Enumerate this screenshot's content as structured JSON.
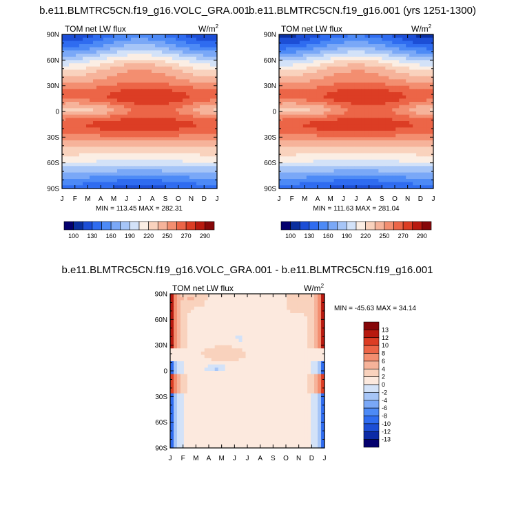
{
  "palette": [
    "#04006e",
    "#0a2f9e",
    "#1c4ed6",
    "#2f6cf0",
    "#4d8af6",
    "#7aa8f7",
    "#a6c5f7",
    "#d3e2f8",
    "#fbeee4",
    "#f9d2bd",
    "#f6b39a",
    "#f38e70",
    "#ec6547",
    "#dc3d24",
    "#b8190f",
    "#860709"
  ],
  "diff_palette": [
    "#04006e",
    "#0c2ba6",
    "#1c4ed6",
    "#2f6cf0",
    "#4d8af6",
    "#7aa8f7",
    "#a6c5f7",
    "#d3e2f8",
    "#fce9de",
    "#f9d2bd",
    "#f6b39a",
    "#f38e70",
    "#ec6547",
    "#dc3d24",
    "#b8190f",
    "#860709"
  ],
  "chart_data": [
    {
      "type": "heatmap",
      "title": "b.e11.BLMTRC5CN.f19_g16.VOLC_GRA.001",
      "left_label": "TOM net LW flux",
      "units_base": "W/m",
      "units_exp": "2",
      "x_ticks": [
        "J",
        "F",
        "M",
        "A",
        "M",
        "J",
        "J",
        "A",
        "S",
        "O",
        "N",
        "D",
        "J"
      ],
      "y_ticks": [
        "90N",
        "60N",
        "30N",
        "0",
        "30S",
        "60S",
        "90S"
      ],
      "min_max": "MIN = 113.45 MAX = 282.31",
      "colorbar_labels": [
        "100",
        "130",
        "160",
        "190",
        "220",
        "250",
        "270",
        "290"
      ],
      "vmin": 100,
      "vmax": 295,
      "field": "annual"
    },
    {
      "type": "heatmap",
      "title": "b.e11.BLMTRC5CN.f19_g16.001 (yrs 1251-1300)",
      "left_label": "TOM net LW flux",
      "units_base": "W/m",
      "units_exp": "2",
      "x_ticks": [
        "J",
        "F",
        "M",
        "A",
        "M",
        "J",
        "J",
        "A",
        "S",
        "O",
        "N",
        "D",
        "J"
      ],
      "y_ticks": [
        "90N",
        "60N",
        "30N",
        "0",
        "30S",
        "60S",
        "90S"
      ],
      "min_max": "MIN = 111.63 MAX = 281.04",
      "colorbar_labels": [
        "100",
        "130",
        "160",
        "190",
        "220",
        "250",
        "270",
        "290"
      ],
      "vmin": 100,
      "vmax": 295,
      "field": "annual"
    },
    {
      "type": "heatmap",
      "title": "b.e11.BLMTRC5CN.f19_g16.VOLC_GRA.001 - b.e11.BLMTRC5CN.f19_g16.001",
      "left_label": "TOM net LW flux",
      "units_base": "W/m",
      "units_exp": "2",
      "x_ticks": [
        "J",
        "F",
        "M",
        "A",
        "M",
        "J",
        "J",
        "A",
        "S",
        "O",
        "N",
        "D",
        "J"
      ],
      "y_ticks": [
        "90N",
        "60N",
        "30N",
        "0",
        "30S",
        "60S",
        "90S"
      ],
      "min_max": "MIN = -45.63 MAX =  34.14",
      "colorbar_labels": [
        "13",
        "12",
        "10",
        "8",
        "6",
        "4",
        "2",
        "0",
        "-2",
        "-4",
        "-6",
        "-8",
        "-10",
        "-12",
        "-13"
      ],
      "levels": [
        -14,
        -13,
        -12,
        -10,
        -8,
        -6,
        -4,
        -2,
        0,
        2,
        4,
        6,
        8,
        10,
        12,
        13,
        14
      ],
      "field": "diff"
    }
  ]
}
